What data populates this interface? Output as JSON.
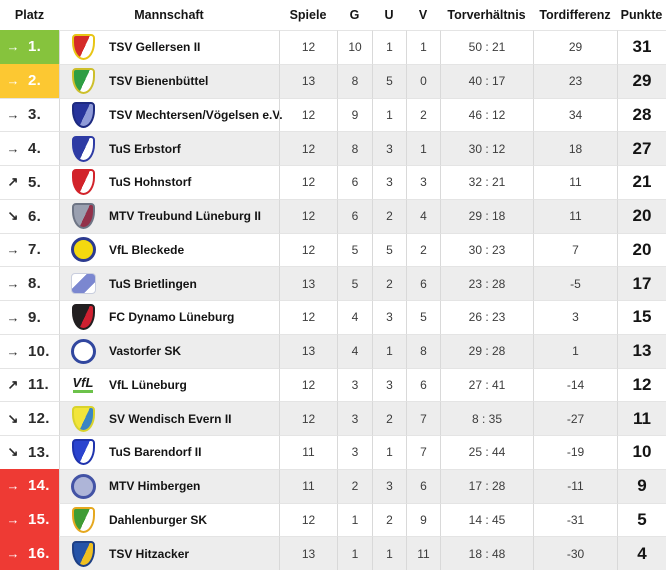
{
  "table": {
    "headers": {
      "platz": "Platz",
      "mannschaft": "Mannschaft",
      "spiele": "Spiele",
      "g": "G",
      "u": "U",
      "v": "V",
      "torverhaeltnis": "Torverhältnis",
      "tordifferenz": "Tordifferenz",
      "punkte": "Punkte"
    },
    "zone_colors": {
      "promotion": "#86c33d",
      "playoff": "#fcc832",
      "relegation": "#ee3a34"
    },
    "trend_icons": {
      "right": "→",
      "up": "↗",
      "down": "↘"
    },
    "stripe_color": "#ededed",
    "rows": [
      {
        "rank": "1.",
        "trend": "right",
        "zone": "promotion",
        "team": "TSV Gellersen II",
        "spiele": "12",
        "g": "10",
        "u": "1",
        "v": "1",
        "torverhaeltnis": "50 : 21",
        "tordifferenz": "29",
        "punkte": "31",
        "logo": {
          "shape": "shield",
          "c1": "#d52b28",
          "c2": "#ffffff",
          "c3": "#e8c515"
        }
      },
      {
        "rank": "2.",
        "trend": "right",
        "zone": "playoff",
        "team": "TSV Bienenbüttel",
        "spiele": "13",
        "g": "8",
        "u": "5",
        "v": "0",
        "torverhaeltnis": "40 : 17",
        "tordifferenz": "23",
        "punkte": "29",
        "logo": {
          "shape": "shield",
          "c1": "#2f9e44",
          "c2": "#ffffff",
          "c3": "#cdbf2b"
        }
      },
      {
        "rank": "3.",
        "trend": "right",
        "zone": null,
        "team": "TSV Mechtersen/Vögelsen e.V.",
        "spiele": "12",
        "g": "9",
        "u": "1",
        "v": "2",
        "torverhaeltnis": "46 : 12",
        "tordifferenz": "34",
        "punkte": "28",
        "logo": {
          "shape": "shield",
          "c1": "#26339b",
          "c2": "#8f9bd8",
          "c3": "#1d2a80"
        }
      },
      {
        "rank": "4.",
        "trend": "right",
        "zone": null,
        "team": "TuS Erbstorf",
        "spiele": "12",
        "g": "8",
        "u": "3",
        "v": "1",
        "torverhaeltnis": "30 : 12",
        "tordifferenz": "18",
        "punkte": "27",
        "logo": {
          "shape": "shield",
          "c1": "#2e3ba4",
          "c2": "#ffffff",
          "c3": "#2e3ba4"
        }
      },
      {
        "rank": "5.",
        "trend": "up",
        "zone": null,
        "team": "TuS Hohnstorf",
        "spiele": "12",
        "g": "6",
        "u": "3",
        "v": "3",
        "torverhaeltnis": "32 : 21",
        "tordifferenz": "11",
        "punkte": "21",
        "logo": {
          "shape": "shield",
          "c1": "#d2232a",
          "c2": "#ffffff",
          "c3": "#d2232a"
        }
      },
      {
        "rank": "6.",
        "trend": "down",
        "zone": null,
        "team": "MTV Treubund Lüneburg II",
        "spiele": "12",
        "g": "6",
        "u": "2",
        "v": "4",
        "torverhaeltnis": "29 : 18",
        "tordifferenz": "11",
        "punkte": "20",
        "logo": {
          "shape": "shield",
          "c1": "#9aa0b0",
          "c2": "#93314a",
          "c3": "#6e7585"
        }
      },
      {
        "rank": "7.",
        "trend": "right",
        "zone": null,
        "team": "VfL Bleckede",
        "spiele": "12",
        "g": "5",
        "u": "5",
        "v": "2",
        "torverhaeltnis": "30 : 23",
        "tordifferenz": "7",
        "punkte": "20",
        "logo": {
          "shape": "circle",
          "c1": "#f4d90f",
          "c2": "#2c3b90"
        }
      },
      {
        "rank": "8.",
        "trend": "right",
        "zone": null,
        "team": "TuS Brietlingen",
        "spiele": "13",
        "g": "5",
        "u": "2",
        "v": "6",
        "torverhaeltnis": "23 : 28",
        "tordifferenz": "-5",
        "punkte": "17",
        "logo": {
          "shape": "square",
          "c1": "#ffffff",
          "c2": "#7b87d0"
        }
      },
      {
        "rank": "9.",
        "trend": "right",
        "zone": null,
        "team": "FC Dynamo Lüneburg",
        "spiele": "12",
        "g": "4",
        "u": "3",
        "v": "5",
        "torverhaeltnis": "26 : 23",
        "tordifferenz": "3",
        "punkte": "15",
        "logo": {
          "shape": "shield",
          "c1": "#221f20",
          "c2": "#cf2030",
          "c3": "#221f20"
        }
      },
      {
        "rank": "10.",
        "trend": "right",
        "zone": null,
        "team": "Vastorfer SK",
        "spiele": "13",
        "g": "4",
        "u": "1",
        "v": "8",
        "torverhaeltnis": "29 : 28",
        "tordifferenz": "1",
        "punkte": "13",
        "logo": {
          "shape": "circle",
          "c1": "#ffffff",
          "c2": "#31479f"
        }
      },
      {
        "rank": "11.",
        "trend": "up",
        "zone": null,
        "team": "VfL Lüneburg",
        "spiele": "12",
        "g": "3",
        "u": "3",
        "v": "6",
        "torverhaeltnis": "27 : 41",
        "tordifferenz": "-14",
        "punkte": "12",
        "logo": {
          "shape": "text",
          "text": "VfL",
          "c1": "#1a1a1a",
          "c2": "#6cc24a"
        }
      },
      {
        "rank": "12.",
        "trend": "down",
        "zone": null,
        "team": "SV Wendisch Evern II",
        "spiele": "12",
        "g": "3",
        "u": "2",
        "v": "7",
        "torverhaeltnis": "8 : 35",
        "tordifferenz": "-27",
        "punkte": "11",
        "logo": {
          "shape": "shield",
          "c1": "#f2e53a",
          "c2": "#3a85c4",
          "c3": "#d9d32c"
        }
      },
      {
        "rank": "13.",
        "trend": "down",
        "zone": null,
        "team": "TuS Barendorf II",
        "spiele": "11",
        "g": "3",
        "u": "1",
        "v": "7",
        "torverhaeltnis": "25 : 44",
        "tordifferenz": "-19",
        "punkte": "10",
        "logo": {
          "shape": "shield",
          "c1": "#2b44cf",
          "c2": "#ffffff",
          "c3": "#1f33ad"
        }
      },
      {
        "rank": "14.",
        "trend": "right",
        "zone": "relegation",
        "team": "MTV Himbergen",
        "spiele": "11",
        "g": "2",
        "u": "3",
        "v": "6",
        "torverhaeltnis": "17 : 28",
        "tordifferenz": "-11",
        "punkte": "9",
        "logo": {
          "shape": "circle",
          "c1": "#aeb5d8",
          "c2": "#4353a5"
        }
      },
      {
        "rank": "15.",
        "trend": "right",
        "zone": "relegation",
        "team": "Dahlenburger SK",
        "spiele": "12",
        "g": "1",
        "u": "2",
        "v": "9",
        "torverhaeltnis": "14 : 45",
        "tordifferenz": "-31",
        "punkte": "5",
        "logo": {
          "shape": "shield",
          "c1": "#3f9c35",
          "c2": "#ffffff",
          "c3": "#e5a81f"
        }
      },
      {
        "rank": "16.",
        "trend": "right",
        "zone": "relegation",
        "team": "TSV Hitzacker",
        "spiele": "13",
        "g": "1",
        "u": "1",
        "v": "11",
        "torverhaeltnis": "18 : 48",
        "tordifferenz": "-30",
        "punkte": "4",
        "logo": {
          "shape": "shield",
          "c1": "#2553a8",
          "c2": "#f0c020",
          "c3": "#1d3f85"
        }
      }
    ]
  }
}
